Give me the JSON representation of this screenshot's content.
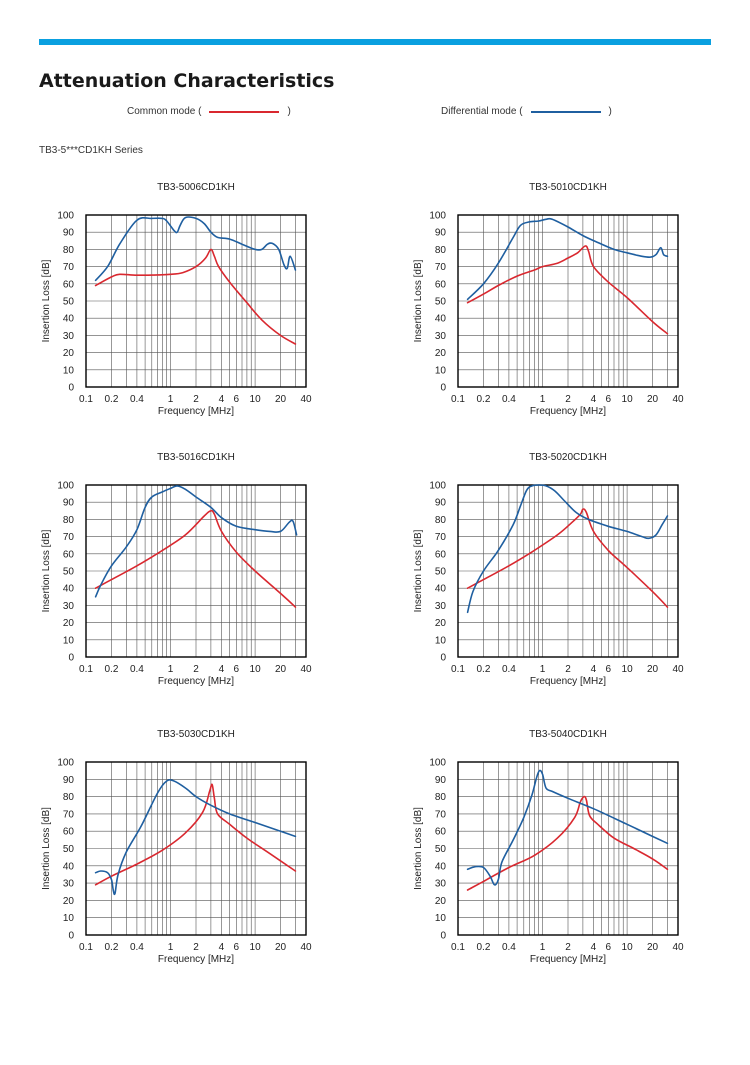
{
  "page": {
    "title": "Attenuation Characteristics",
    "series_label": "TB3-5***CD1KH Series"
  },
  "legend": {
    "common": {
      "prefix": "Common mode (",
      "suffix": ")",
      "color": "#d9282f"
    },
    "differential": {
      "prefix": "Differential mode (",
      "suffix": ")",
      "color": "#1f5fa0"
    }
  },
  "colors": {
    "accent_bar": "#0aa0e0",
    "grid": "#555555",
    "frame": "#000000"
  },
  "chart_data": [
    {
      "type": "line",
      "title": "TB3-5006CD1KH",
      "xlabel": "Frequency [MHz]",
      "ylabel": "Insertion Loss [dB]",
      "xscale": "log",
      "xlim": [
        0.1,
        40
      ],
      "ylim": [
        0,
        100
      ],
      "x_ticks": [
        0.1,
        0.2,
        0.4,
        1,
        2,
        4,
        6,
        10,
        20,
        40
      ],
      "x_tick_labels": [
        "0.1",
        "0.2",
        "0.4",
        "1",
        "2",
        "4",
        "6",
        "10",
        "20",
        "40"
      ],
      "y_ticks": [
        0,
        10,
        20,
        30,
        40,
        50,
        60,
        70,
        80,
        90,
        100
      ],
      "grid": true,
      "series": [
        {
          "mode": "common",
          "x": [
            0.13,
            0.2,
            0.25,
            0.4,
            0.7,
            1.0,
            1.4,
            2.0,
            2.6,
            3.0,
            3.3,
            3.7,
            5.0,
            8.0,
            12.0,
            20.0,
            30.0
          ],
          "y": [
            59,
            64,
            65.5,
            65,
            65.2,
            65.5,
            66.5,
            70,
            75,
            80,
            76,
            70,
            61,
            49,
            39,
            30,
            25
          ]
        },
        {
          "mode": "differential",
          "x": [
            0.13,
            0.18,
            0.25,
            0.4,
            0.6,
            0.8,
            0.9,
            1.1,
            1.2,
            1.3,
            1.5,
            2.0,
            2.5,
            3.0,
            3.6,
            5.0,
            7.0,
            10.0,
            12.0,
            14.0,
            16.0,
            19.0,
            22.0,
            24.0,
            26.0,
            30.0
          ],
          "y": [
            62,
            70,
            83,
            97,
            98,
            98,
            96.5,
            91,
            90,
            94,
            98.5,
            98,
            95,
            90,
            87,
            86,
            83,
            80,
            80,
            83,
            83.5,
            80,
            71,
            69,
            76,
            68
          ]
        }
      ]
    },
    {
      "type": "line",
      "title": "TB3-5010CD1KH",
      "xlabel": "Frequency [MHz]",
      "ylabel": "Insertion Loss [dB]",
      "xscale": "log",
      "xlim": [
        0.1,
        40
      ],
      "ylim": [
        0,
        100
      ],
      "x_ticks": [
        0.1,
        0.2,
        0.4,
        1,
        2,
        4,
        6,
        10,
        20,
        40
      ],
      "x_tick_labels": [
        "0.1",
        "0.2",
        "0.4",
        "1",
        "2",
        "4",
        "6",
        "10",
        "20",
        "40"
      ],
      "y_ticks": [
        0,
        10,
        20,
        30,
        40,
        50,
        60,
        70,
        80,
        90,
        100
      ],
      "grid": true,
      "series": [
        {
          "mode": "common",
          "x": [
            0.13,
            0.2,
            0.3,
            0.5,
            0.8,
            1.0,
            1.5,
            2.0,
            2.6,
            3.2,
            3.5,
            4.0,
            6.0,
            10.0,
            20.0,
            30.0
          ],
          "y": [
            49,
            54,
            59,
            64.5,
            68,
            70,
            72,
            75,
            78,
            82,
            79,
            70,
            61,
            52,
            38,
            31
          ]
        },
        {
          "mode": "differential",
          "x": [
            0.13,
            0.2,
            0.3,
            0.45,
            0.55,
            0.7,
            0.9,
            1.1,
            1.3,
            2.0,
            3.0,
            4.5,
            7.0,
            10.0,
            15.0,
            19.0,
            22.0,
            25.0,
            27.0,
            30.0
          ],
          "y": [
            51,
            60,
            72,
            87,
            94,
            96,
            96.5,
            97.5,
            97.5,
            93,
            88,
            84,
            80,
            78,
            76,
            75.5,
            77,
            81,
            77,
            76
          ]
        }
      ]
    },
    {
      "type": "line",
      "title": "TB3-5016CD1KH",
      "xlabel": "Frequency [MHz]",
      "ylabel": "Insertion Loss [dB]",
      "xscale": "log",
      "xlim": [
        0.1,
        40
      ],
      "ylim": [
        0,
        100
      ],
      "x_ticks": [
        0.1,
        0.2,
        0.4,
        1,
        2,
        4,
        6,
        10,
        20,
        40
      ],
      "x_tick_labels": [
        "0.1",
        "0.2",
        "0.4",
        "1",
        "2",
        "4",
        "6",
        "10",
        "20",
        "40"
      ],
      "y_ticks": [
        0,
        10,
        20,
        30,
        40,
        50,
        60,
        70,
        80,
        90,
        100
      ],
      "grid": true,
      "series": [
        {
          "mode": "common",
          "x": [
            0.13,
            0.2,
            0.4,
            0.8,
            1.5,
            2.5,
            3.0,
            3.3,
            4.0,
            6.0,
            10.0,
            20.0,
            30.0
          ],
          "y": [
            40,
            45,
            53,
            62,
            71,
            82,
            85,
            83,
            73,
            61,
            50,
            37,
            29
          ]
        },
        {
          "mode": "differential",
          "x": [
            0.13,
            0.15,
            0.2,
            0.3,
            0.4,
            0.5,
            0.6,
            0.8,
            1.0,
            1.2,
            1.5,
            2.0,
            3.0,
            4.0,
            6.0,
            10.0,
            15.0,
            20.0,
            25.0,
            28.0,
            31.0
          ],
          "y": [
            35,
            42,
            53,
            64,
            74,
            87,
            93,
            96,
            98,
            99.5,
            97.5,
            93,
            87,
            81,
            76,
            74,
            73,
            73,
            78,
            79,
            71
          ]
        }
      ]
    },
    {
      "type": "line",
      "title": "TB3-5020CD1KH",
      "xlabel": "Frequency [MHz]",
      "ylabel": "Insertion Loss [dB]",
      "xscale": "log",
      "xlim": [
        0.1,
        40
      ],
      "ylim": [
        0,
        100
      ],
      "x_ticks": [
        0.1,
        0.2,
        0.4,
        1,
        2,
        4,
        6,
        10,
        20,
        40
      ],
      "x_tick_labels": [
        "0.1",
        "0.2",
        "0.4",
        "1",
        "2",
        "4",
        "6",
        "10",
        "20",
        "40"
      ],
      "y_ticks": [
        0,
        10,
        20,
        30,
        40,
        50,
        60,
        70,
        80,
        90,
        100
      ],
      "grid": true,
      "series": [
        {
          "mode": "common",
          "x": [
            0.13,
            0.2,
            0.4,
            0.8,
            1.5,
            2.2,
            2.8,
            3.0,
            3.3,
            4.0,
            6.0,
            10.0,
            20.0,
            30.0
          ],
          "y": [
            40,
            45,
            53,
            62,
            71,
            78,
            83,
            86,
            84,
            73,
            62,
            52,
            38,
            29
          ]
        },
        {
          "mode": "differential",
          "x": [
            0.13,
            0.15,
            0.2,
            0.3,
            0.45,
            0.55,
            0.65,
            0.75,
            0.9,
            1.1,
            1.4,
            1.8,
            2.5,
            3.5,
            6.0,
            10.0,
            15.0,
            18.0,
            22.0,
            26.0,
            30.0
          ],
          "y": [
            26,
            38,
            50,
            62,
            77,
            88,
            97,
            99.5,
            100,
            99.5,
            96.5,
            91,
            84,
            80,
            76,
            73,
            70,
            69,
            71,
            77,
            82
          ]
        }
      ]
    },
    {
      "type": "line",
      "title": "TB3-5030CD1KH",
      "xlabel": "Frequency [MHz]",
      "ylabel": "Insertion Loss [dB]",
      "xscale": "log",
      "xlim": [
        0.1,
        40
      ],
      "ylim": [
        0,
        100
      ],
      "x_ticks": [
        0.1,
        0.2,
        0.4,
        1,
        2,
        4,
        6,
        10,
        20,
        40
      ],
      "x_tick_labels": [
        "0.1",
        "0.2",
        "0.4",
        "1",
        "2",
        "4",
        "6",
        "10",
        "20",
        "40"
      ],
      "y_ticks": [
        0,
        10,
        20,
        30,
        40,
        50,
        60,
        70,
        80,
        90,
        100
      ],
      "grid": true,
      "series": [
        {
          "mode": "common",
          "x": [
            0.13,
            0.2,
            0.4,
            0.8,
            1.5,
            2.4,
            2.9,
            3.1,
            3.3,
            3.6,
            5.0,
            8.0,
            15.0,
            30.0
          ],
          "y": [
            29,
            34,
            41,
            49,
            59,
            71,
            83,
            87,
            79,
            70,
            64,
            56,
            47,
            37
          ]
        },
        {
          "mode": "differential",
          "x": [
            0.13,
            0.15,
            0.18,
            0.2,
            0.21,
            0.22,
            0.24,
            0.3,
            0.45,
            0.7,
            0.9,
            1.1,
            1.5,
            2.0,
            3.0,
            5.0,
            10.0,
            20.0,
            30.0
          ],
          "y": [
            36,
            37,
            36,
            32,
            26,
            24,
            35,
            48,
            63,
            82,
            89,
            89,
            85,
            80,
            75,
            70,
            65,
            60,
            57
          ]
        }
      ]
    },
    {
      "type": "line",
      "title": "TB3-5040CD1KH",
      "xlabel": "Frequency [MHz]",
      "ylabel": "Insertion Loss [dB]",
      "xscale": "log",
      "xlim": [
        0.1,
        40
      ],
      "ylim": [
        0,
        100
      ],
      "x_ticks": [
        0.1,
        0.2,
        0.4,
        1,
        2,
        4,
        6,
        10,
        20,
        40
      ],
      "x_tick_labels": [
        "0.1",
        "0.2",
        "0.4",
        "1",
        "2",
        "4",
        "6",
        "10",
        "20",
        "40"
      ],
      "y_ticks": [
        0,
        10,
        20,
        30,
        40,
        50,
        60,
        70,
        80,
        90,
        100
      ],
      "grid": true,
      "series": [
        {
          "mode": "common",
          "x": [
            0.13,
            0.2,
            0.4,
            0.8,
            1.5,
            2.4,
            2.8,
            3.1,
            3.3,
            3.6,
            4.5,
            7.0,
            12.0,
            20.0,
            30.0
          ],
          "y": [
            26,
            31,
            39,
            46,
            56,
            68,
            77,
            80,
            78,
            69,
            64,
            56,
            50,
            44,
            38
          ]
        },
        {
          "mode": "differential",
          "x": [
            0.13,
            0.16,
            0.2,
            0.24,
            0.27,
            0.3,
            0.33,
            0.45,
            0.6,
            0.75,
            0.85,
            0.92,
            1.0,
            1.1,
            1.3,
            2.0,
            4.0,
            10.0,
            20.0,
            30.0
          ],
          "y": [
            38,
            39.5,
            39,
            34,
            29,
            32,
            42,
            55,
            68,
            81,
            91,
            95,
            93,
            85,
            83,
            79,
            73,
            64,
            57,
            53
          ]
        }
      ]
    }
  ]
}
